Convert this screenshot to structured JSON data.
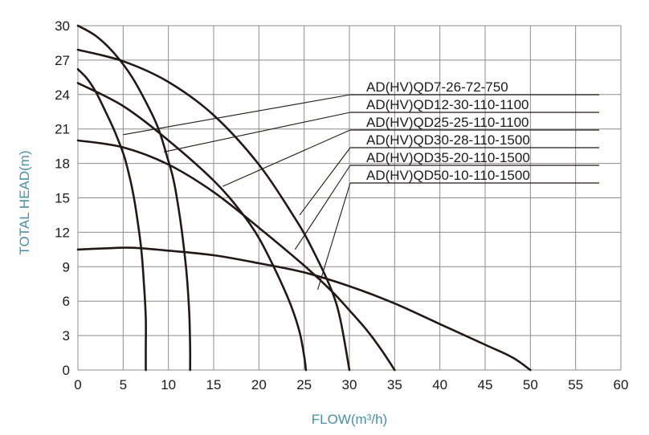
{
  "chart_data": {
    "type": "line",
    "xlabel": "FLOW(m³/h)",
    "ylabel": "TOTAL HEAD(m)",
    "xlim": [
      0,
      60
    ],
    "ylim": [
      0,
      30
    ],
    "xticks": [
      "0",
      "5",
      "10",
      "15",
      "20",
      "25",
      "30",
      "35",
      "40",
      "45",
      "50",
      "55",
      "60"
    ],
    "yticks": [
      "0",
      "3",
      "6",
      "9",
      "12",
      "15",
      "18",
      "21",
      "24",
      "27",
      "30"
    ],
    "grid": true,
    "legend_position": "top-right",
    "series": [
      {
        "name": "AD(HV)QD7-26-72-750",
        "x": [
          0,
          1,
          2,
          3,
          4,
          5,
          5.5,
          6,
          6.5,
          7,
          7.3,
          7.5,
          7.5,
          7.5
        ],
        "y": [
          26.2,
          25.4,
          24.2,
          22.6,
          20.9,
          18.9,
          17.5,
          15.8,
          13.5,
          10.5,
          7.5,
          4.5,
          2.0,
          0
        ],
        "leader_from": [
          5,
          20.5
        ]
      },
      {
        "name": "AD(HV)QD12-30-110-1100",
        "x": [
          0,
          2,
          4,
          6,
          8,
          9,
          10,
          10.5,
          11,
          11.5,
          12,
          12.3,
          12.4,
          12.4
        ],
        "y": [
          30,
          29.1,
          27.6,
          25.5,
          22.6,
          20.8,
          18.2,
          16.8,
          14.7,
          12.0,
          8.5,
          5.0,
          2.0,
          0
        ],
        "leader_from": [
          9.5,
          19
        ]
      },
      {
        "name": "AD(HV)QD25-25-110-1100",
        "x": [
          0,
          5,
          10,
          15,
          18,
          20,
          22,
          23.5,
          24.5,
          25.0,
          25.2
        ],
        "y": [
          25,
          23.0,
          20.0,
          16.5,
          13.8,
          11.5,
          8.4,
          5.7,
          3.3,
          1.2,
          0
        ],
        "leader_from": [
          16,
          16
        ]
      },
      {
        "name": "AD(HV)QD30-28-110-1500",
        "x": [
          0,
          5,
          10,
          15,
          20,
          24,
          26,
          28,
          29,
          30
        ],
        "y": [
          27.9,
          26.9,
          25.1,
          22.2,
          17.9,
          13.2,
          10.4,
          7.0,
          4.4,
          0
        ],
        "leader_from": [
          24.5,
          13.5
        ]
      },
      {
        "name": "AD(HV)QD35-20-110-1500",
        "x": [
          0,
          5,
          10,
          15,
          20,
          25,
          28,
          30,
          32,
          33.5,
          35
        ],
        "y": [
          20.0,
          19.4,
          17.9,
          15.5,
          12.4,
          9.1,
          6.9,
          5.2,
          3.4,
          1.8,
          0
        ],
        "leader_from": [
          24,
          10.5
        ]
      },
      {
        "name": "AD(HV)QD50-10-110-1500",
        "x": [
          0,
          3,
          6,
          10,
          15,
          20,
          25,
          30,
          35,
          40,
          45,
          48,
          50
        ],
        "y": [
          10.5,
          10.6,
          10.65,
          10.4,
          10.0,
          9.3,
          8.5,
          7.3,
          5.8,
          4.0,
          2.2,
          1.1,
          0
        ],
        "leader_from": [
          26.5,
          7
        ]
      }
    ]
  }
}
